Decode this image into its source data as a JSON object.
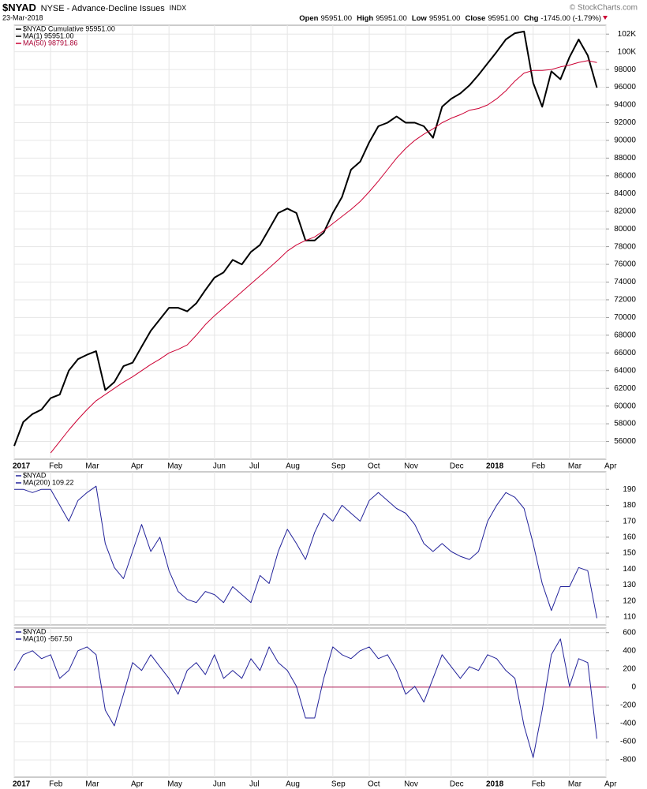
{
  "header": {
    "symbol": "$NYAD",
    "name": "NYSE - Advance-Decline Issues",
    "exchange": "INDX",
    "date": "23-Mar-2018",
    "quote": [
      {
        "label": "Open",
        "value": "95951.00"
      },
      {
        "label": "High",
        "value": "95951.00"
      },
      {
        "label": "Low",
        "value": "95951.00"
      },
      {
        "label": "Close",
        "value": "95951.00"
      },
      {
        "label": "Chg",
        "value": "-1745.00 (-1.79%)"
      }
    ],
    "credit": "© StockCharts.com"
  },
  "chart_data": [
    {
      "type": "line",
      "extra_legend": "MA(1) 95951.00",
      "categories": [
        "2017",
        null,
        null,
        null,
        "Feb",
        null,
        null,
        null,
        "Mar",
        null,
        null,
        null,
        null,
        "Apr",
        null,
        null,
        null,
        "May",
        null,
        null,
        null,
        null,
        "Jun",
        null,
        null,
        null,
        "Jul",
        null,
        null,
        null,
        "Aug",
        null,
        null,
        null,
        null,
        "Sep",
        null,
        null,
        null,
        "Oct",
        null,
        null,
        null,
        "Nov",
        null,
        null,
        null,
        null,
        "Dec",
        null,
        null,
        null,
        "2018",
        null,
        null,
        null,
        null,
        "Feb",
        null,
        null,
        null,
        "Mar",
        null,
        null,
        null,
        "Apr"
      ],
      "series": [
        {
          "name": "$NYAD Cumulative 95951.00",
          "color": "#000000",
          "width": 2,
          "values": [
            55500,
            58200,
            59100,
            59600,
            60900,
            61300,
            64000,
            65300,
            65800,
            66200,
            61800,
            62700,
            64500,
            64900,
            66700,
            68500,
            69800,
            71100,
            71100,
            70700,
            71600,
            73100,
            74500,
            75100,
            76500,
            76000,
            77400,
            78200,
            80000,
            81800,
            82300,
            81800,
            78700,
            78700,
            79600,
            81800,
            83600,
            86700,
            87600,
            89800,
            91600,
            92000,
            92700,
            92000,
            92000,
            91600,
            90300,
            93800,
            94700,
            95300,
            96200,
            97400,
            98700,
            100000,
            101400,
            102100,
            102300,
            96500,
            93800,
            97800,
            96900,
            99400,
            101400,
            99600,
            95951,
            null
          ]
        },
        {
          "name": "MA(50) 98791.86",
          "color": "#cc0033",
          "width": 1,
          "values": [
            null,
            null,
            null,
            null,
            54700,
            56000,
            57300,
            58500,
            59600,
            60600,
            61300,
            62000,
            62700,
            63300,
            64000,
            64700,
            65300,
            66000,
            66400,
            66900,
            68000,
            69200,
            70200,
            71100,
            72000,
            72900,
            73800,
            74700,
            75600,
            76500,
            77500,
            78200,
            78700,
            79100,
            79800,
            80600,
            81400,
            82200,
            83100,
            84200,
            85400,
            86700,
            88000,
            89100,
            90000,
            90700,
            91300,
            92000,
            92500,
            92900,
            93400,
            93600,
            94000,
            94700,
            95600,
            96700,
            97600,
            97900,
            97900,
            98000,
            98300,
            98500,
            98800,
            99000,
            98791.86,
            null
          ]
        }
      ],
      "ylim": [
        54000,
        103000
      ],
      "yticks": [
        56000,
        58000,
        60000,
        62000,
        64000,
        66000,
        68000,
        70000,
        72000,
        74000,
        76000,
        78000,
        80000,
        82000,
        84000,
        86000,
        88000,
        90000,
        92000,
        94000,
        96000,
        98000,
        {
          "value": 100000,
          "label": "100K"
        },
        {
          "value": 102000,
          "label": "102K"
        }
      ],
      "grid": true
    },
    {
      "type": "line",
      "title": "$NYAD",
      "series": [
        {
          "name": "MA(200) 109.22",
          "color": "#22229a",
          "width": 1,
          "values": [
            190,
            190,
            188,
            190,
            190,
            180,
            170,
            183,
            188,
            192,
            156,
            141,
            134,
            151,
            168,
            151,
            160,
            139,
            126,
            121,
            119,
            126,
            124,
            119,
            129,
            124,
            119,
            136,
            131,
            151,
            165,
            156,
            146,
            163,
            175,
            170,
            180,
            175,
            170,
            183,
            188,
            183,
            178,
            175,
            168,
            156,
            151,
            156,
            151,
            148,
            146,
            151,
            170,
            180,
            188,
            185,
            178,
            156,
            131,
            114,
            129,
            129,
            141,
            139,
            109.22,
            null
          ]
        }
      ],
      "ylim": [
        105,
        201
      ],
      "yticks": [
        110,
        120,
        130,
        140,
        150,
        160,
        170,
        180,
        190
      ],
      "grid": true
    },
    {
      "type": "line",
      "title": "$NYAD",
      "categories": [
        "2017",
        null,
        null,
        null,
        "Feb",
        null,
        null,
        null,
        "Mar",
        null,
        null,
        null,
        null,
        "Apr",
        null,
        null,
        null,
        "May",
        null,
        null,
        null,
        null,
        "Jun",
        null,
        null,
        null,
        "Jul",
        null,
        null,
        null,
        "Aug",
        null,
        null,
        null,
        null,
        "Sep",
        null,
        null,
        null,
        "Oct",
        null,
        null,
        null,
        "Nov",
        null,
        null,
        null,
        null,
        "Dec",
        null,
        null,
        null,
        "2018",
        null,
        null,
        null,
        null,
        "Feb",
        null,
        null,
        null,
        "Mar",
        null,
        null,
        null,
        "Apr"
      ],
      "series": [
        {
          "name": "MA(10) -567.50",
          "color": "#22229a",
          "width": 1,
          "values": [
            183,
            357,
            400,
            313,
            357,
            96,
            183,
            400,
            443,
            357,
            -252,
            -426,
            -78,
            270,
            183,
            357,
            226,
            96,
            -78,
            183,
            270,
            139,
            357,
            96,
            183,
            96,
            313,
            183,
            443,
            270,
            183,
            9,
            -339,
            -339,
            96,
            443,
            357,
            313,
            400,
            443,
            313,
            357,
            183,
            -78,
            9,
            -165,
            96,
            357,
            226,
            96,
            226,
            183,
            357,
            313,
            183,
            96,
            -426,
            -774,
            -252,
            357,
            530,
            9,
            313,
            270,
            -567.5,
            null
          ]
        }
      ],
      "ylim": [
        -990,
        650
      ],
      "yticks": [
        -800,
        -600,
        -400,
        -200,
        0,
        200,
        400,
        600
      ],
      "grid": true,
      "hline": {
        "value": 0,
        "color": "#b0205a"
      }
    }
  ]
}
